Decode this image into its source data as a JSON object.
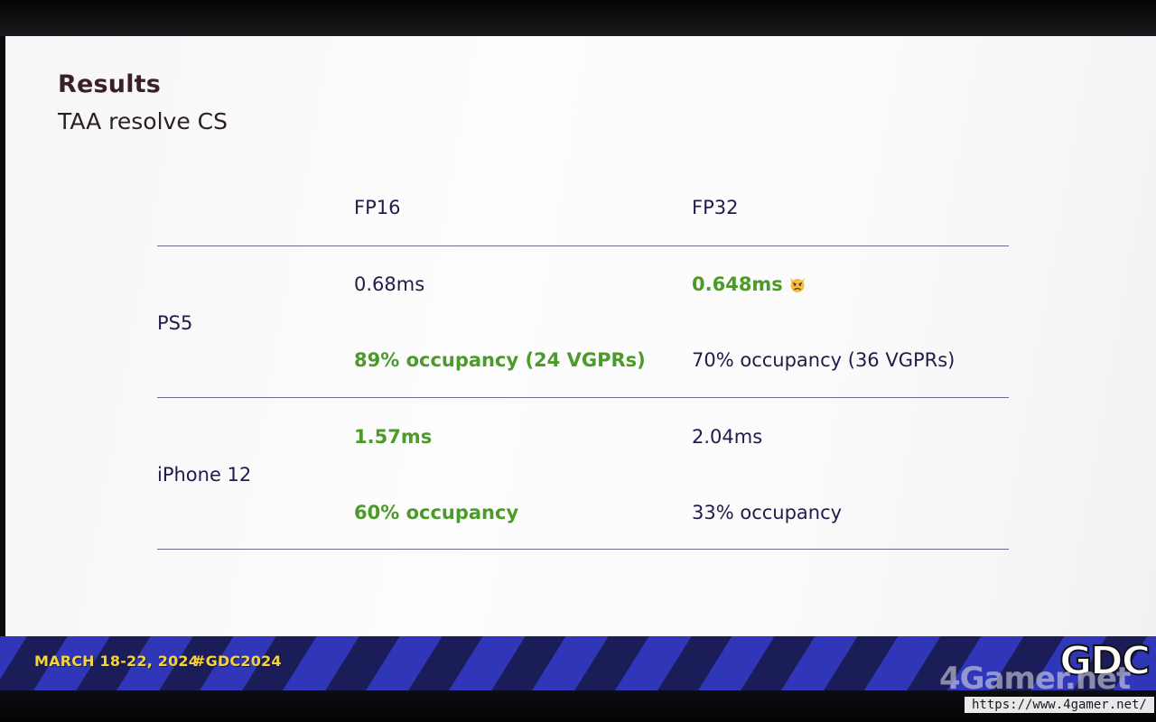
{
  "slide": {
    "title": "Results",
    "subtitle": "TAA resolve CS",
    "columns": [
      "FP16",
      "FP32"
    ],
    "rows": [
      {
        "device": "PS5",
        "fp16_time": "0.68ms",
        "fp32_time": "0.648ms",
        "fp16_occupancy": "89% occupancy (24 VGPRs)",
        "fp32_occupancy": "70% occupancy (36 VGPRs)"
      },
      {
        "device": "iPhone 12",
        "fp16_time": "1.57ms",
        "fp32_time": "2.04ms",
        "fp16_occupancy": "60% occupancy",
        "fp32_occupancy": "33% occupancy"
      }
    ],
    "highlight_color": "#4c9a2a",
    "text_color": "#1e1d4a",
    "emoji_icon": "angry-cat-icon"
  },
  "footer": {
    "dates": "MARCH 18-22, 2024",
    "hashtag": "#GDC2024",
    "logo": "GDC",
    "accent_color": "#f4d23a"
  },
  "watermark": {
    "brand": "4Gamer.net",
    "url": "https://www.4gamer.net/"
  }
}
